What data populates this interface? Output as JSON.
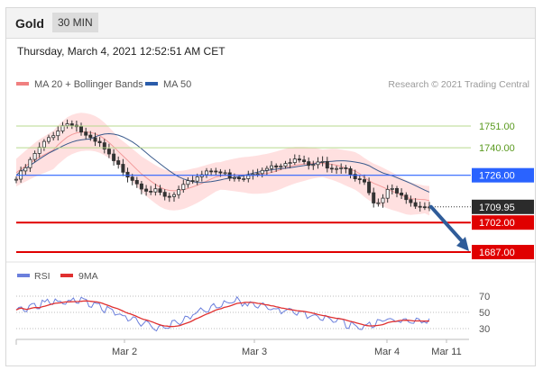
{
  "header": {
    "asset": "Gold",
    "timeframe": "30 MIN"
  },
  "datetime": "Thursday, March 4, 2021 12:52:51 AM CET",
  "legend": {
    "ma20": "MA 20 + Bollinger Bands",
    "ma50": "MA 50",
    "credit": "Research © 2021 Trading Central"
  },
  "rsi_legend": {
    "rsi": "RSI",
    "ma9": "9MA"
  },
  "colors": {
    "resistance": "#76b82a",
    "pivot": "#2a63ff",
    "support": "#e00000",
    "price": "#333333",
    "arrow": "#2f5c99",
    "bands": "#ffd6d6",
    "ma50": "#3a5a8c",
    "rsi": "#6b7fdc",
    "rsi_ma": "#e03030"
  },
  "chart_data": [
    {
      "type": "candlestick",
      "title": "Gold",
      "x_ticks": [
        "Mar 2",
        "Mar 3",
        "Mar 4",
        "Mar 11"
      ],
      "ylim": [
        1681,
        1765
      ],
      "price_path": [
        1724,
        1728,
        1733,
        1738,
        1742,
        1746,
        1749,
        1752,
        1753,
        1750,
        1746,
        1743,
        1742,
        1738,
        1733,
        1730,
        1727,
        1724,
        1721,
        1719,
        1718,
        1716,
        1714,
        1716,
        1719,
        1722,
        1725,
        1727,
        1729,
        1729,
        1727,
        1724,
        1724,
        1724,
        1726,
        1727,
        1730,
        1731,
        1731,
        1733,
        1734,
        1734,
        1731,
        1731,
        1733,
        1731,
        1730,
        1731,
        1730,
        1726,
        1725,
        1719,
        1710,
        1713,
        1718,
        1719,
        1717,
        1714,
        1711,
        1711,
        1710
      ],
      "levels": [
        {
          "label": "1751.00",
          "value": 1751,
          "kind": "resistance"
        },
        {
          "label": "1740.00",
          "value": 1740,
          "kind": "resistance"
        },
        {
          "label": "1726.00",
          "value": 1726,
          "kind": "pivot"
        },
        {
          "label": "1709.95",
          "value": 1709.95,
          "kind": "last"
        },
        {
          "label": "1702.00",
          "value": 1702,
          "kind": "support"
        },
        {
          "label": "1687.00",
          "value": 1687,
          "kind": "support"
        }
      ],
      "forecast_arrow": {
        "from": 1709.95,
        "to": 1687
      }
    },
    {
      "type": "line",
      "title": "RSI",
      "series": [
        {
          "name": "RSI"
        },
        {
          "name": "9MA"
        }
      ],
      "y_ticks": [
        70,
        50,
        30
      ],
      "ylim": [
        20,
        80
      ],
      "rsi_path": [
        53,
        54,
        58,
        60,
        62,
        63,
        64,
        65,
        66,
        59,
        56,
        52,
        48,
        44,
        40,
        37,
        33,
        31,
        33,
        37,
        42,
        48,
        52,
        55,
        59,
        62,
        65,
        62,
        61,
        58,
        56,
        53,
        51,
        49,
        47,
        45,
        44,
        42,
        39,
        36,
        33,
        30,
        34,
        38,
        43,
        40,
        38,
        41,
        40,
        39
      ]
    }
  ]
}
